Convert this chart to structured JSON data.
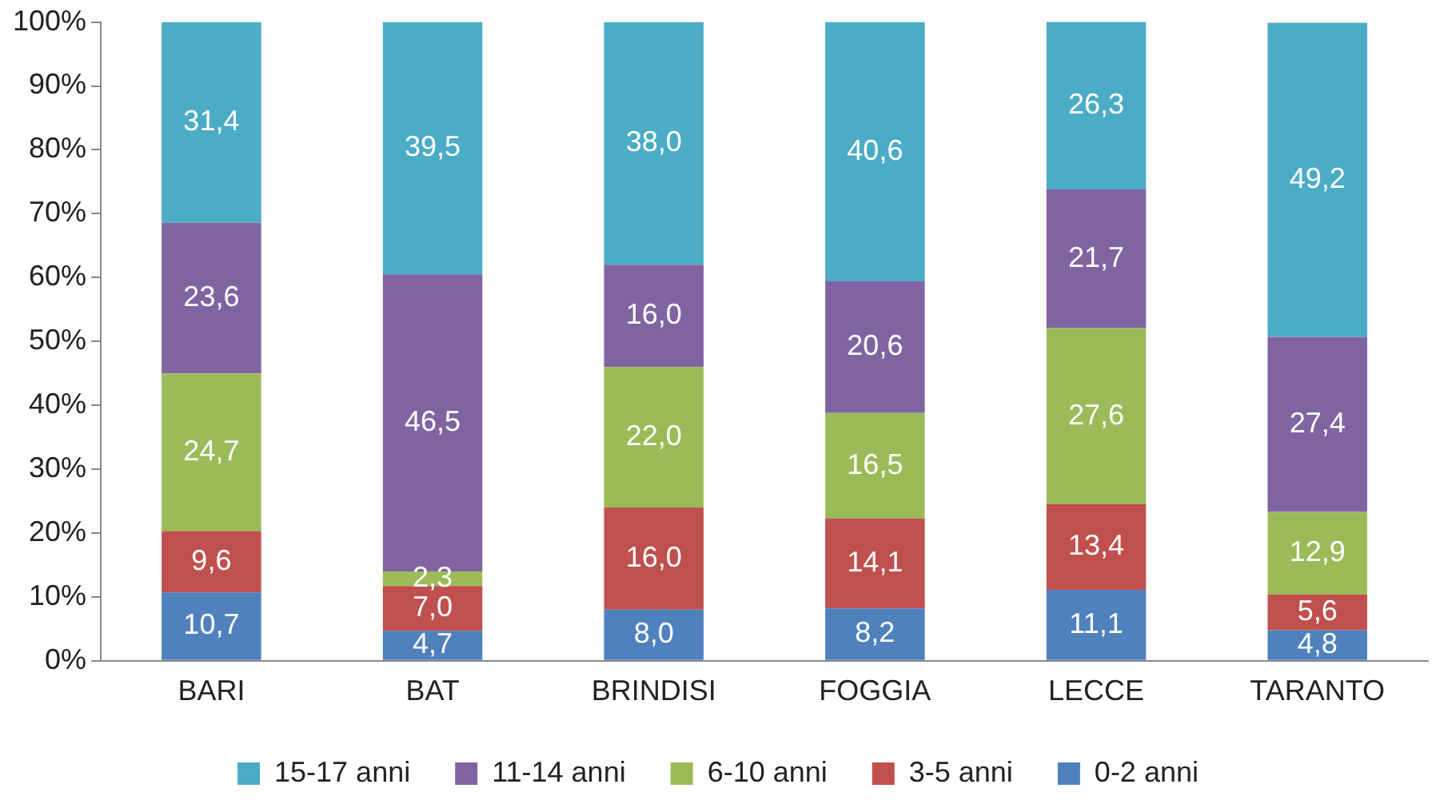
{
  "chart_data": {
    "type": "bar",
    "stacked": true,
    "categories": [
      "BARI",
      "BAT",
      "BRINDISI",
      "FOGGIA",
      "LECCE",
      "TARANTO"
    ],
    "ylim": [
      0,
      100
    ],
    "yticks": [
      {
        "value": 0,
        "label": "0%"
      },
      {
        "value": 10,
        "label": "10%"
      },
      {
        "value": 20,
        "label": "20%"
      },
      {
        "value": 30,
        "label": "30%"
      },
      {
        "value": 40,
        "label": "40%"
      },
      {
        "value": 50,
        "label": "50%"
      },
      {
        "value": 60,
        "label": "60%"
      },
      {
        "value": 70,
        "label": "70%"
      },
      {
        "value": 80,
        "label": "80%"
      },
      {
        "value": 90,
        "label": "90%"
      },
      {
        "value": 100,
        "label": "100%"
      }
    ],
    "legend": "bottom",
    "grid": false,
    "series": [
      {
        "name": "0-2 anni",
        "color": "#4f81bd",
        "values": [
          10.7,
          4.7,
          8.0,
          8.2,
          11.1,
          4.8
        ],
        "value_labels": [
          "10,7",
          "4,7",
          "8,0",
          "8,2",
          "11,1",
          "4,8"
        ]
      },
      {
        "name": "3-5 anni",
        "color": "#c0504d",
        "values": [
          9.6,
          7.0,
          16.0,
          14.1,
          13.4,
          5.6
        ],
        "value_labels": [
          "9,6",
          "7,0",
          "16,0",
          "14,1",
          "13,4",
          "5,6"
        ]
      },
      {
        "name": "6-10 anni",
        "color": "#9bbb59",
        "values": [
          24.7,
          2.3,
          22.0,
          16.5,
          27.6,
          12.9
        ],
        "value_labels": [
          "24,7",
          "2,3",
          "22,0",
          "16,5",
          "27,6",
          "12,9"
        ]
      },
      {
        "name": "11-14 anni",
        "color": "#8064a2",
        "values": [
          23.6,
          46.5,
          16.0,
          20.6,
          21.7,
          27.4
        ],
        "value_labels": [
          "23,6",
          "46,5",
          "16,0",
          "20,6",
          "21,7",
          "27,4"
        ]
      },
      {
        "name": "15-17 anni",
        "color": "#4bacc6",
        "values": [
          31.4,
          39.5,
          38.0,
          40.6,
          26.3,
          49.2
        ],
        "value_labels": [
          "31,4",
          "39,5",
          "38,0",
          "40,6",
          "26,3",
          "49,2"
        ]
      }
    ]
  }
}
